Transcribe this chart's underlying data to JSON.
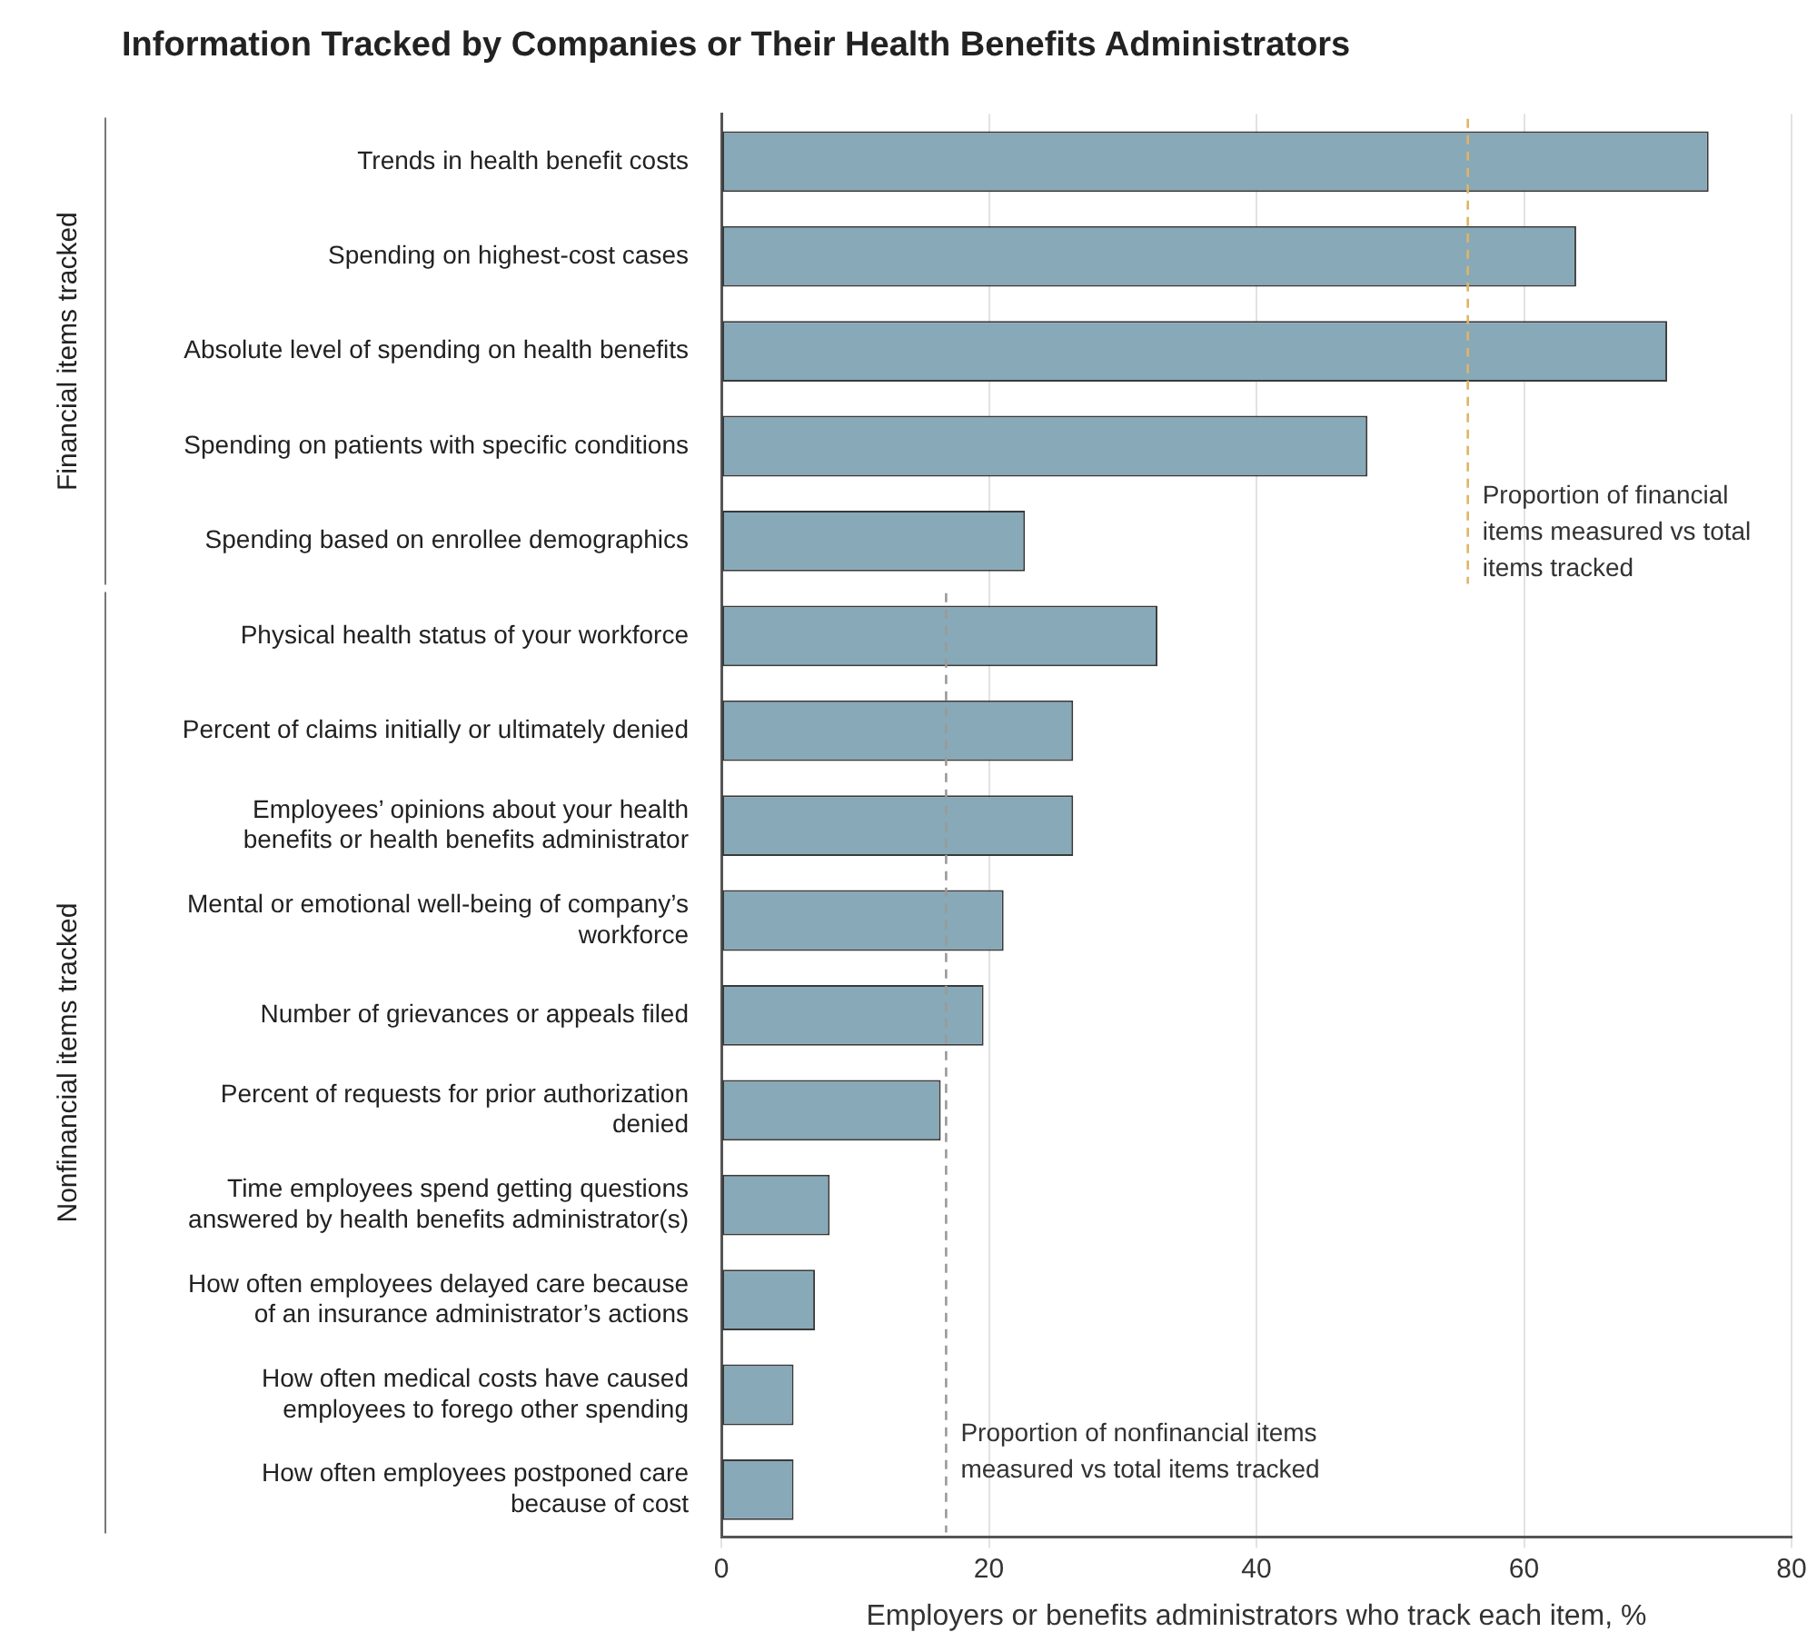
{
  "chart_data": {
    "type": "bar",
    "orientation": "horizontal",
    "title": "Information Tracked by Companies or Their Health Benefits Administrators",
    "xlabel": "Employers or benefits administrators who track each item, %",
    "categories": [
      "Trends in health benefit costs",
      "Spending on highest-cost cases",
      "Absolute level of spending on health benefits",
      "Spending on patients with specific conditions",
      "Spending based on enrollee demographics",
      "Physical health status of your workforce",
      "Percent of claims initially or ultimately denied",
      "Employees’ opinions about your health benefits or health benefits administrator",
      "Mental or emotional well-being of company’s workforce",
      "Number of grievances or appeals filed",
      "Percent of requests for prior authorization denied",
      "Time employees spend getting questions answered by health benefits administrator(s)",
      "How often employees delayed care because of an insurance administrator’s actions",
      "How often medical costs have caused employees to forego other spending",
      "How often employees postponed care because of cost"
    ],
    "values": [
      73.8,
      63.9,
      70.7,
      48.3,
      22.7,
      32.6,
      26.3,
      26.3,
      21.1,
      19.6,
      16.4,
      8.1,
      7.0,
      5.4,
      5.4
    ],
    "color": "#87a9b8",
    "xlim": [
      0,
      80
    ],
    "xticks": [
      0,
      20,
      40,
      60,
      80
    ],
    "grid": "x",
    "legend": false,
    "ref_lines": [
      {
        "axis": "x",
        "value": 55.8,
        "label": "Proportion of financial items measured vs total items tracked",
        "color": "#e0b468",
        "line_style": "dashed"
      },
      {
        "axis": "x",
        "value": 16.8,
        "label": "Proportion of nonfinancial items measured vs total items tracked",
        "color": "#9a9a9a",
        "line_style": "dashed"
      }
    ],
    "annotations": [
      "Financial items tracked",
      "Nonfinancial items tracked"
    ]
  }
}
